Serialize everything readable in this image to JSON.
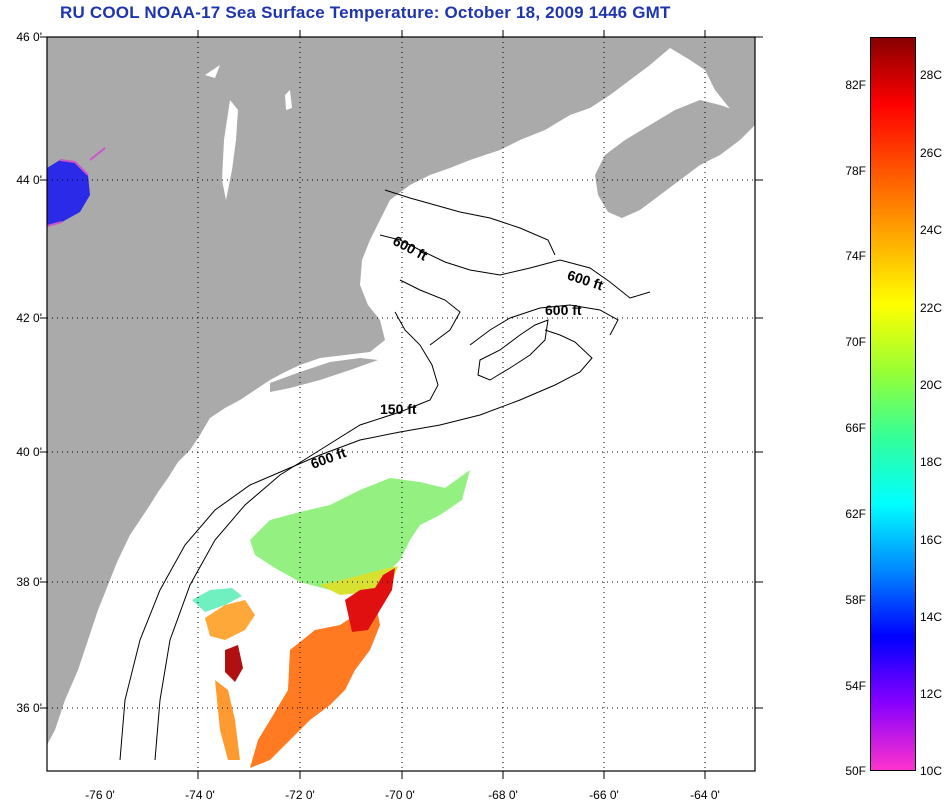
{
  "title": "RU COOL  NOAA-17  Sea Surface Temperature:  October 18, 2009 1446 GMT",
  "map": {
    "latitude_labels": [
      "46 0'",
      "44 0'",
      "42 0'",
      "40 0'",
      "38 0'",
      "36 0'"
    ],
    "longitude_labels": [
      "-76 0'",
      "-74 0'",
      "-72 0'",
      "-70 0'",
      "-68 0'",
      "-66 0'",
      "-64 0'"
    ],
    "contour_labels": [
      "600 ft",
      "600 ft",
      "600 ft",
      "150 ft",
      "600 ft"
    ],
    "land_color": "#aaaaaa",
    "water_color": "#ffffff"
  },
  "colorbar": {
    "fahrenheit_labels": [
      "82F",
      "78F",
      "74F",
      "70F",
      "66F",
      "62F",
      "58F",
      "54F",
      "50F"
    ],
    "celsius_labels": [
      "28C",
      "26C",
      "24C",
      "22C",
      "20C",
      "18C",
      "16C",
      "14C",
      "12C",
      "10C"
    ],
    "colors": [
      "#ff33cc",
      "#8800ff",
      "#0000ff",
      "#0088ff",
      "#00ffff",
      "#33ff99",
      "#99ff33",
      "#ffff00",
      "#ffaa00",
      "#ff5500",
      "#ff0000",
      "#880000"
    ]
  }
}
